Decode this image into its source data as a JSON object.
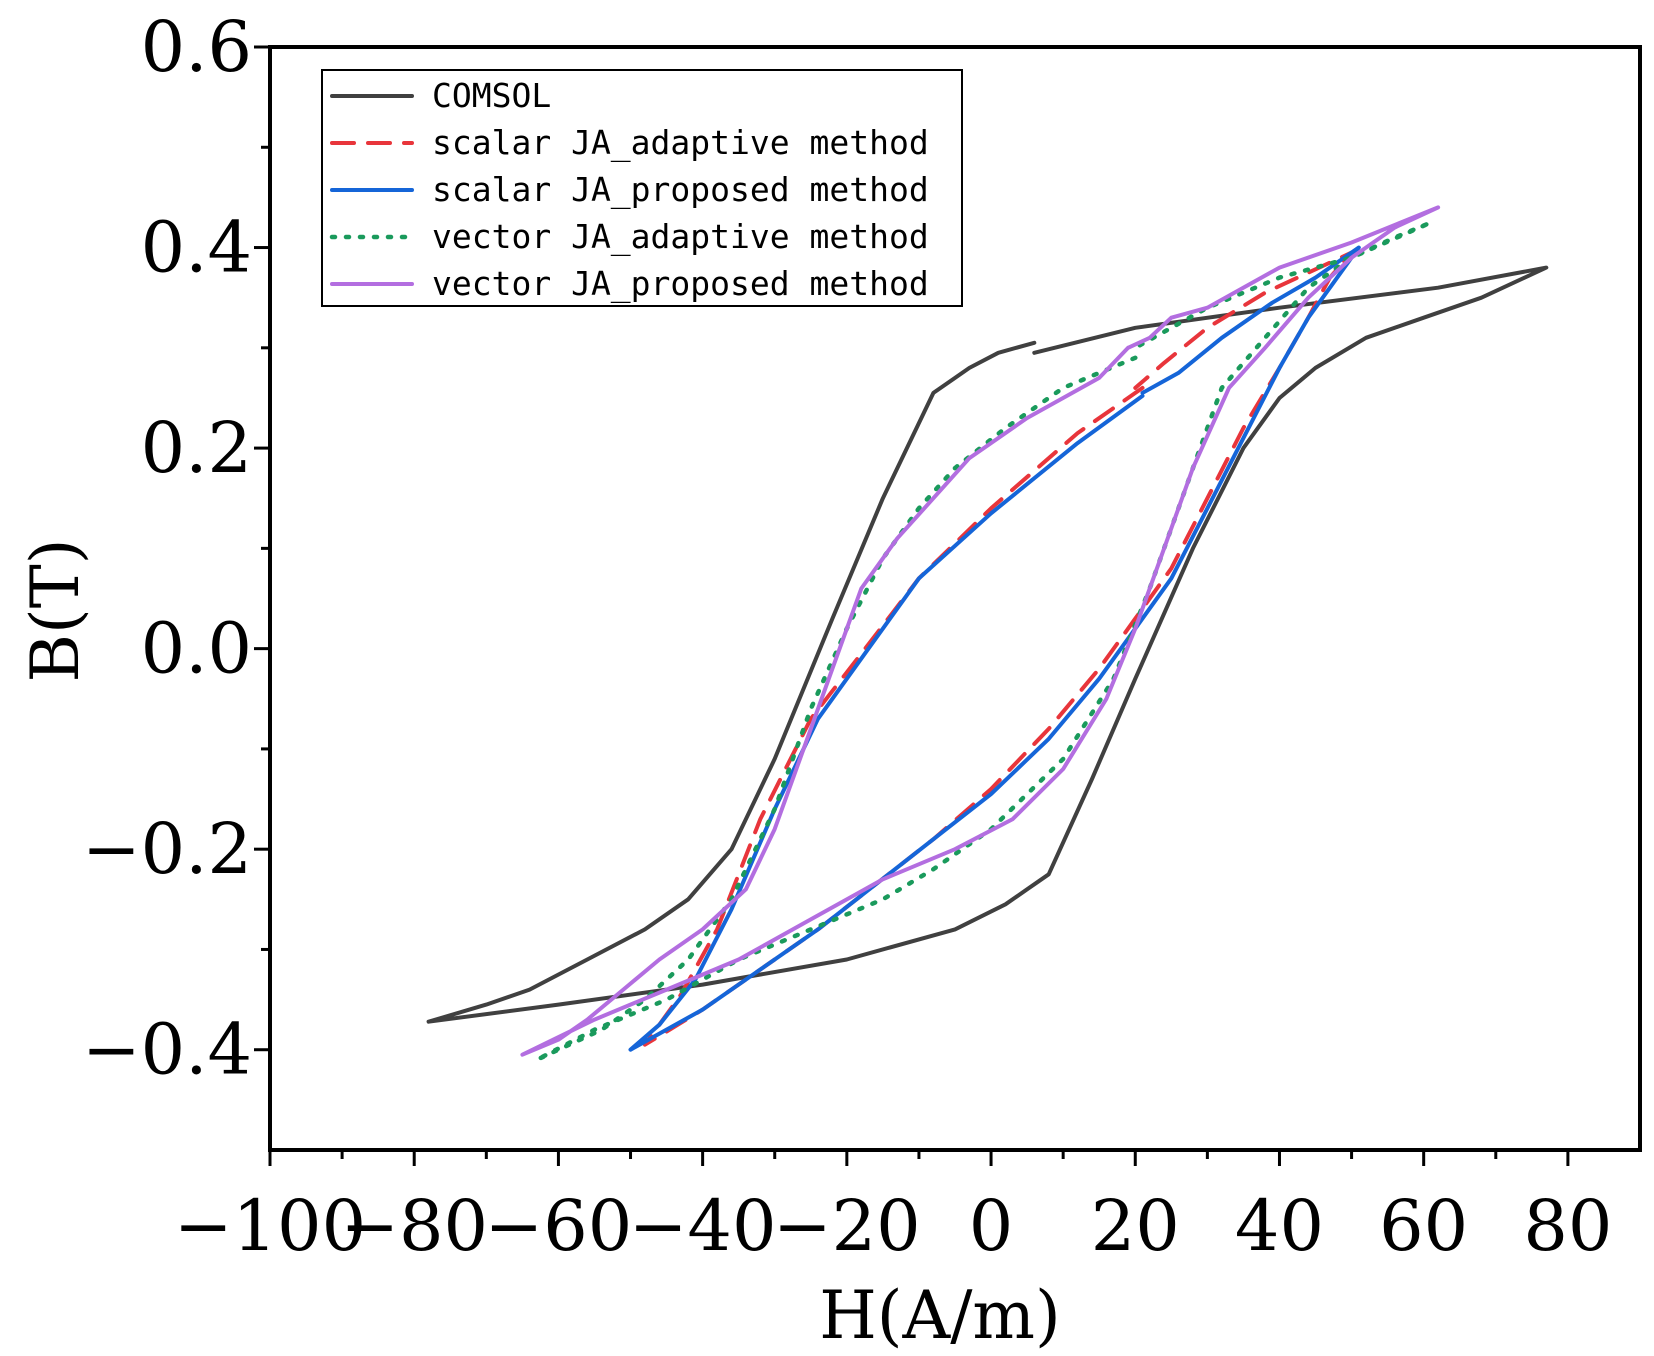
{
  "chart_data": {
    "type": "line",
    "title": "",
    "xlabel": "H(A/m)",
    "ylabel": "B(T)",
    "xlim": [
      -100,
      90
    ],
    "ylim": [
      -0.5,
      0.6
    ],
    "xticks": [
      -100,
      -80,
      -60,
      -40,
      -20,
      0,
      20,
      40,
      60,
      80
    ],
    "xtick_labels": [
      "−100",
      "−80",
      "−60",
      "−40",
      "−20",
      "0",
      "20",
      "40",
      "60",
      "80"
    ],
    "yticks": [
      -0.4,
      -0.2,
      0.0,
      0.2,
      0.4,
      0.6
    ],
    "ytick_labels": [
      "−0.4",
      "−0.2",
      "0.0",
      "0.2",
      "0.4",
      "0.6"
    ],
    "grid": false,
    "legend_position": "top-left",
    "series": [
      {
        "name": "COMSOL",
        "color": "#404040",
        "dash": "solid",
        "x": [
          6,
          1,
          -3,
          -8,
          -15,
          -22,
          -30,
          -36,
          -42,
          -48,
          -56,
          -64,
          -70,
          -78,
          -60,
          -40,
          -20,
          -5,
          2,
          6,
          8,
          14,
          20,
          28,
          35,
          40,
          45,
          52,
          60,
          68,
          77,
          62,
          40,
          20,
          6
        ],
        "y": [
          0.305,
          0.295,
          0.28,
          0.255,
          0.15,
          0.03,
          -0.11,
          -0.2,
          -0.25,
          -0.28,
          -0.31,
          -0.34,
          -0.355,
          -0.372,
          -0.355,
          -0.335,
          -0.31,
          -0.28,
          -0.255,
          -0.235,
          -0.225,
          -0.13,
          -0.03,
          0.1,
          0.2,
          0.25,
          0.28,
          0.31,
          0.33,
          0.35,
          0.38,
          0.36,
          0.34,
          0.32,
          0.295
        ]
      },
      {
        "name": "scalar JA_adaptive method",
        "color": "#e8353b",
        "dash": "dashed",
        "x": [
          21,
          12,
          0,
          -10,
          -18,
          -25,
          -32,
          -38,
          -43,
          -48,
          -40,
          -32,
          -24,
          -16,
          -8,
          0,
          8,
          15,
          20,
          25,
          30,
          35,
          40,
          44,
          47,
          50,
          44,
          38,
          30,
          24,
          20
        ],
        "y": [
          0.26,
          0.215,
          0.14,
          0.07,
          -0.005,
          -0.07,
          -0.17,
          -0.28,
          -0.345,
          -0.395,
          -0.36,
          -0.32,
          -0.28,
          -0.235,
          -0.19,
          -0.14,
          -0.08,
          -0.02,
          0.03,
          0.08,
          0.15,
          0.22,
          0.28,
          0.33,
          0.37,
          0.395,
          0.375,
          0.355,
          0.32,
          0.285,
          0.26
        ]
      },
      {
        "name": "scalar JA_proposed method",
        "color": "#1565d8",
        "dash": "solid",
        "x": [
          21,
          12,
          0,
          -10,
          -17,
          -24,
          -30,
          -36,
          -41,
          -46,
          -50,
          -40,
          -32,
          -24,
          -16,
          -8,
          0,
          8,
          15,
          20,
          25,
          30,
          35,
          40,
          44,
          48,
          51,
          45,
          39,
          32,
          26,
          21
        ],
        "y": [
          0.252,
          0.205,
          0.135,
          0.07,
          0.0,
          -0.07,
          -0.16,
          -0.26,
          -0.33,
          -0.375,
          -0.4,
          -0.36,
          -0.32,
          -0.28,
          -0.235,
          -0.19,
          -0.145,
          -0.09,
          -0.03,
          0.02,
          0.07,
          0.14,
          0.21,
          0.28,
          0.33,
          0.37,
          0.4,
          0.37,
          0.345,
          0.31,
          0.275,
          0.255
        ]
      },
      {
        "name": "vector JA_adaptive method",
        "color": "#1a9a5c",
        "dash": "dotted",
        "x": [
          20,
          10,
          2,
          -5,
          -10,
          -15,
          -20,
          -25,
          -30,
          -36,
          -42,
          -48,
          -54,
          -60,
          -63,
          -55,
          -45,
          -35,
          -25,
          -15,
          -8,
          0,
          10,
          17,
          22,
          27,
          32,
          38,
          44,
          50,
          56,
          61,
          50,
          40,
          30,
          25,
          20
        ],
        "y": [
          0.29,
          0.26,
          0.22,
          0.18,
          0.14,
          0.09,
          0.02,
          -0.06,
          -0.16,
          -0.25,
          -0.31,
          -0.35,
          -0.38,
          -0.4,
          -0.41,
          -0.38,
          -0.35,
          -0.31,
          -0.28,
          -0.25,
          -0.22,
          -0.18,
          -0.11,
          -0.03,
          0.06,
          0.16,
          0.26,
          0.31,
          0.36,
          0.39,
          0.41,
          0.425,
          0.39,
          0.37,
          0.34,
          0.32,
          0.3
        ]
      },
      {
        "name": "vector JA_proposed method",
        "color": "#b36ee0",
        "dash": "solid",
        "x": [
          19,
          15,
          5,
          -3,
          -8,
          -13,
          -18,
          -22,
          -26,
          -30,
          -34,
          -40,
          -46,
          -51,
          -56,
          -60,
          -65,
          -55,
          -45,
          -35,
          -25,
          -15,
          -5,
          3,
          10,
          16,
          20,
          24,
          28,
          33,
          38,
          44,
          50,
          56,
          62,
          50,
          40,
          30,
          25,
          22,
          19
        ],
        "y": [
          0.3,
          0.27,
          0.23,
          0.19,
          0.15,
          0.11,
          0.06,
          -0.02,
          -0.1,
          -0.18,
          -0.24,
          -0.28,
          -0.31,
          -0.34,
          -0.37,
          -0.39,
          -0.405,
          -0.37,
          -0.34,
          -0.31,
          -0.27,
          -0.23,
          -0.2,
          -0.17,
          -0.12,
          -0.05,
          0.02,
          0.1,
          0.18,
          0.26,
          0.3,
          0.35,
          0.39,
          0.42,
          0.44,
          0.405,
          0.38,
          0.34,
          0.33,
          0.31,
          0.3
        ]
      }
    ]
  }
}
